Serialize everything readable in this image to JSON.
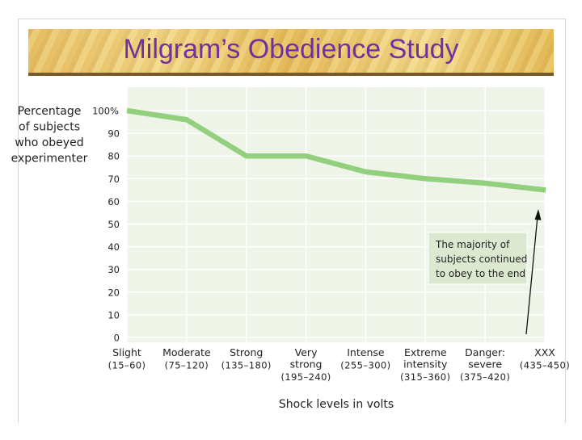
{
  "slide": {
    "title": "Milgram’s Obedience Study"
  },
  "chart_data": {
    "type": "line",
    "ylabel": [
      "Percentage",
      "of subjects",
      "who obeyed",
      "experimenter"
    ],
    "xlabel": "Shock levels in volts",
    "ylim": [
      0,
      100
    ],
    "yticks": [
      "0",
      "10",
      "20",
      "30",
      "40",
      "50",
      "60",
      "70",
      "80",
      "90",
      "100%"
    ],
    "categories": [
      {
        "name": [
          "Slight"
        ],
        "range": "(15–60)"
      },
      {
        "name": [
          "Moderate"
        ],
        "range": "(75–120)"
      },
      {
        "name": [
          "Strong"
        ],
        "range": "(135–180)"
      },
      {
        "name": [
          "Very",
          "strong"
        ],
        "range": "(195–240)"
      },
      {
        "name": [
          "Intense"
        ],
        "range": "(255–300)"
      },
      {
        "name": [
          "Extreme",
          "intensity"
        ],
        "range": "(315–360)"
      },
      {
        "name": [
          "Danger:",
          "severe"
        ],
        "range": "(375–420)"
      },
      {
        "name": [
          "XXX"
        ],
        "range": "(435–450)"
      }
    ],
    "x_points": [
      0,
      1,
      2,
      3,
      4,
      5,
      6,
      7
    ],
    "values": [
      100,
      96,
      80,
      80,
      73,
      70,
      68,
      65
    ],
    "line_color": "#92d07e",
    "plot_background": "#eef5e8",
    "grid": true,
    "annotation": [
      "The majority of",
      "subjects continued",
      "to obey to the end"
    ]
  }
}
